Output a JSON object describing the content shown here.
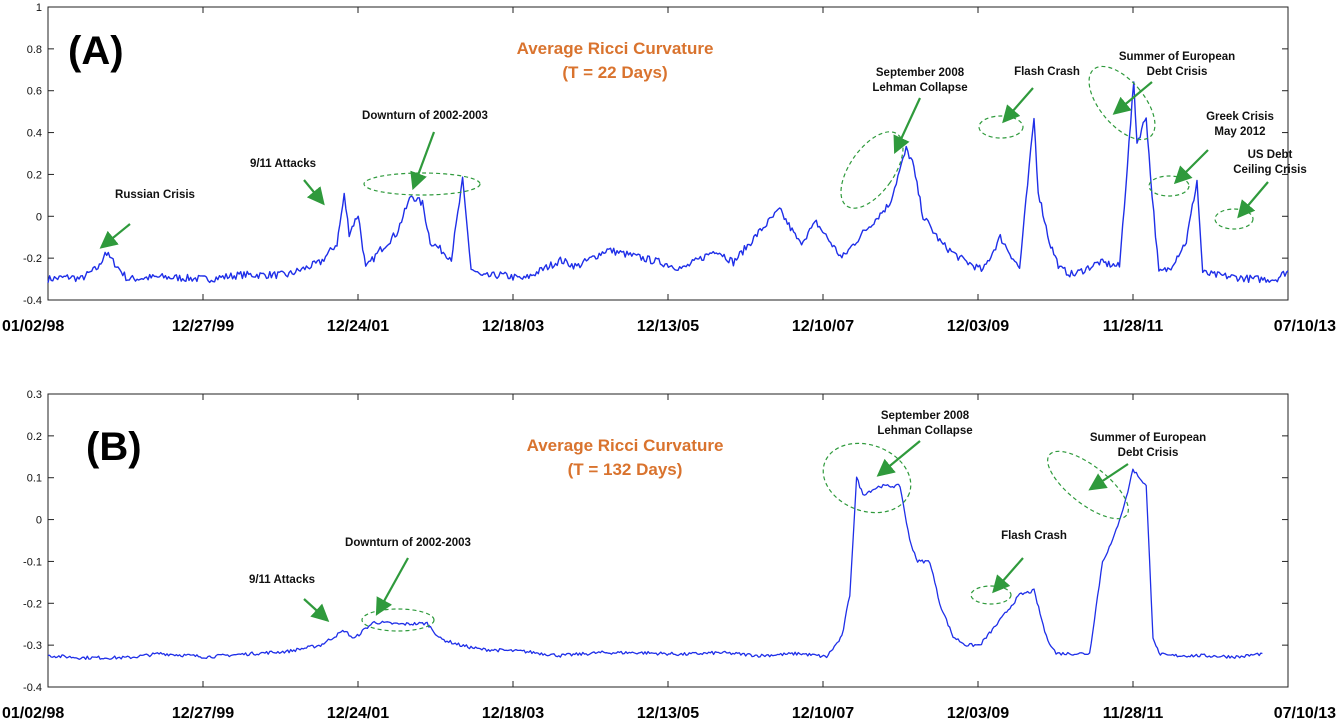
{
  "accent_colors": {
    "series": "#1f2fe8",
    "title": "#d9732e",
    "arrow": "#2f9a3c",
    "ellipse": "#2f9a3c"
  },
  "x_tick_labels": [
    "01/02/98",
    "12/27/99",
    "12/24/01",
    "12/18/03",
    "12/13/05",
    "12/10/07",
    "12/03/09",
    "11/28/11",
    "07/10/13"
  ],
  "chart_data": [
    {
      "type": "line",
      "panel_label": "(A)",
      "title": "Average Ricci Curvature",
      "subtitle": "(T = 22 Days)",
      "xlabel": "",
      "ylabel": "",
      "ylim": [
        -0.4,
        1
      ],
      "yticks": [
        "1",
        "0.8",
        "0.6",
        "0.4",
        "0.2",
        "0",
        "-0.2",
        "-0.4"
      ],
      "series": [
        {
          "x": [
            "01/02/98",
            "04/15/98",
            "06/01/98",
            "08/25/98",
            "09/20/98",
            "01/01/99",
            "06/01/99",
            "12/27/99",
            "06/01/00",
            "01/01/01",
            "06/01/01",
            "08/15/01",
            "09/17/01",
            "10/10/01",
            "11/20/01",
            "12/24/01",
            "03/01/02",
            "05/15/02",
            "07/20/02",
            "09/10/02",
            "10/15/02",
            "01/20/03",
            "03/12/03",
            "04/20/03",
            "06/10/03",
            "09/01/03",
            "12/18/03",
            "06/01/04",
            "08/15/04",
            "01/01/05",
            "05/01/05",
            "09/01/05",
            "12/13/05",
            "05/15/06",
            "08/01/06",
            "12/01/06",
            "02/28/07",
            "06/01/07",
            "08/15/07",
            "12/10/07",
            "03/15/08",
            "07/15/08",
            "09/29/08",
            "10/27/08",
            "12/15/08",
            "03/09/09",
            "06/01/09",
            "09/15/09",
            "12/03/09",
            "03/01/10",
            "05/06/10",
            "05/25/10",
            "07/15/10",
            "09/01/10",
            "11/01/10",
            "03/01/11",
            "06/01/11",
            "08/05/11",
            "08/20/11",
            "10/01/11",
            "10/20/11",
            "11/28/11",
            "01/15/12",
            "04/01/12",
            "05/20/12",
            "06/15/12",
            "08/01/12",
            "11/01/12",
            "02/01/13",
            "05/15/13",
            "07/10/13"
          ],
          "values": [
            -0.3,
            -0.29,
            -0.3,
            -0.24,
            -0.17,
            -0.3,
            -0.29,
            -0.3,
            -0.28,
            -0.28,
            -0.22,
            -0.13,
            0.1,
            -0.08,
            0.01,
            -0.25,
            -0.16,
            -0.08,
            0.1,
            0.06,
            -0.12,
            -0.2,
            0.17,
            -0.25,
            -0.29,
            -0.28,
            -0.3,
            -0.21,
            -0.24,
            -0.16,
            -0.19,
            -0.22,
            -0.25,
            -0.16,
            -0.22,
            -0.07,
            0.03,
            -0.13,
            -0.03,
            -0.2,
            -0.08,
            0.06,
            0.32,
            0.26,
            0.0,
            -0.13,
            -0.2,
            -0.26,
            -0.1,
            -0.25,
            0.47,
            0.12,
            -0.12,
            -0.25,
            -0.28,
            -0.22,
            -0.24,
            0.64,
            0.35,
            0.48,
            0.2,
            -0.27,
            -0.25,
            -0.12,
            0.17,
            -0.27,
            -0.28,
            -0.29,
            -0.3,
            -0.3,
            -0.26
          ]
        }
      ],
      "annotations": [
        {
          "lines": [
            "Russian Crisis"
          ]
        },
        {
          "lines": [
            "9/11 Attacks"
          ]
        },
        {
          "lines": [
            "Downturn of 2002-2003"
          ]
        },
        {
          "lines": [
            "September 2008",
            "Lehman Collapse"
          ]
        },
        {
          "lines": [
            "Flash Crash"
          ]
        },
        {
          "lines": [
            "Summer of European",
            "Debt Crisis"
          ]
        },
        {
          "lines": [
            "Greek Crisis",
            "May 2012"
          ]
        },
        {
          "lines": [
            "US Debt",
            "Ceiling Crisis"
          ]
        }
      ]
    },
    {
      "type": "line",
      "panel_label": "(B)",
      "title": "Average Ricci Curvature",
      "subtitle": "(T = 132 Days)",
      "xlabel": "",
      "ylabel": "",
      "ylim": [
        -0.4,
        0.3
      ],
      "yticks": [
        "0.3",
        "0.2",
        "0.1",
        "0",
        "-0.1",
        "-0.2",
        "-0.3",
        "-0.4"
      ],
      "series": [
        {
          "x": [
            "01/02/98",
            "06/01/98",
            "01/01/99",
            "06/01/99",
            "12/27/99",
            "06/01/00",
            "01/01/01",
            "06/01/01",
            "09/17/01",
            "11/01/01",
            "12/24/01",
            "02/01/02",
            "06/01/02",
            "10/01/02",
            "12/01/02",
            "03/01/03",
            "06/01/03",
            "12/18/03",
            "06/01/04",
            "12/01/04",
            "06/01/05",
            "12/13/05",
            "06/01/06",
            "12/01/06",
            "06/01/07",
            "10/01/07",
            "12/10/07",
            "01/15/08",
            "02/15/08",
            "03/15/08",
            "06/01/08",
            "09/01/08",
            "10/15/08",
            "11/20/08",
            "01/15/09",
            "03/01/09",
            "05/01/09",
            "07/01/09",
            "09/01/09",
            "12/03/09",
            "03/01/10",
            "05/06/10",
            "07/01/10",
            "08/15/10",
            "09/15/10",
            "10/15/10",
            "12/01/10",
            "01/15/11",
            "03/15/11",
            "05/01/11",
            "07/01/11",
            "08/01/11",
            "09/01/11",
            "10/01/11",
            "11/01/11",
            "11/28/11",
            "01/01/12",
            "06/01/12",
            "12/01/12",
            "03/15/13"
          ],
          "values": [
            -0.325,
            -0.33,
            -0.33,
            -0.32,
            -0.328,
            -0.322,
            -0.315,
            -0.3,
            -0.265,
            -0.285,
            -0.26,
            -0.245,
            -0.25,
            -0.248,
            -0.285,
            -0.3,
            -0.31,
            -0.315,
            -0.325,
            -0.318,
            -0.318,
            -0.322,
            -0.318,
            -0.325,
            -0.32,
            -0.328,
            -0.28,
            -0.18,
            0.1,
            0.06,
            0.08,
            0.08,
            -0.05,
            -0.1,
            -0.1,
            -0.2,
            -0.28,
            -0.3,
            -0.3,
            -0.24,
            -0.18,
            -0.17,
            -0.28,
            -0.32,
            -0.32,
            -0.32,
            -0.32,
            -0.32,
            -0.1,
            -0.05,
            0.05,
            0.12,
            0.1,
            0.08,
            -0.28,
            -0.32,
            -0.325,
            -0.325,
            -0.328,
            -0.32
          ]
        }
      ],
      "annotations": [
        {
          "lines": [
            "9/11 Attacks"
          ]
        },
        {
          "lines": [
            "Downturn of 2002-2003"
          ]
        },
        {
          "lines": [
            "September 2008",
            "Lehman Collapse"
          ]
        },
        {
          "lines": [
            "Flash Crash"
          ]
        },
        {
          "lines": [
            "Summer of European",
            "Debt Crisis"
          ]
        }
      ]
    }
  ]
}
